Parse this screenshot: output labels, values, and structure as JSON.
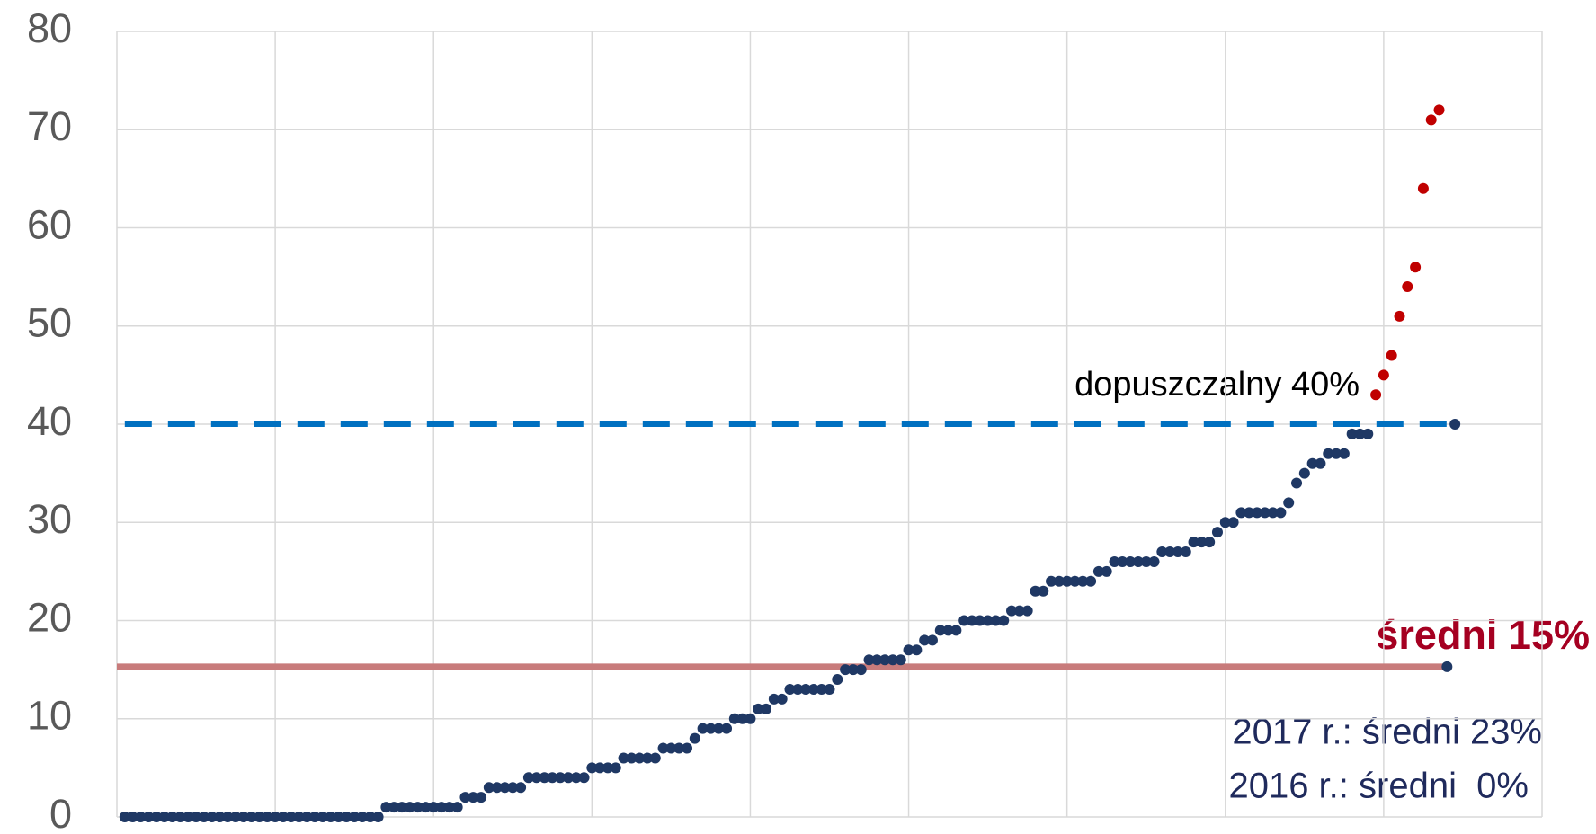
{
  "chart_data": {
    "type": "scatter",
    "xlim": [
      0,
      180
    ],
    "xticks": [
      0,
      20,
      40,
      60,
      80,
      100,
      120,
      140,
      160,
      180
    ],
    "ylim": [
      0,
      80
    ],
    "yticks": [
      0,
      10,
      20,
      30,
      40,
      50,
      60,
      70,
      80
    ],
    "grid": true,
    "series": [
      {
        "color": "#1f3864",
        "x": [
          1,
          2,
          3,
          4,
          5,
          6,
          7,
          8,
          9,
          10,
          11,
          12,
          13,
          14,
          15,
          16,
          17,
          18,
          19,
          20,
          21,
          22,
          23,
          24,
          25,
          26,
          27,
          28,
          29,
          30,
          31,
          32,
          33,
          34,
          35,
          36,
          37,
          38,
          39,
          40,
          41,
          42,
          43,
          44,
          45,
          46,
          47,
          48,
          49,
          50,
          51,
          52,
          53,
          54,
          55,
          56,
          57,
          58,
          59,
          60,
          61,
          62,
          63,
          64,
          65,
          66,
          67,
          68,
          69,
          70,
          71,
          72,
          73,
          74,
          75,
          76,
          77,
          78,
          79,
          80,
          81,
          82,
          83,
          84,
          85,
          86,
          87,
          88,
          89,
          90,
          91,
          92,
          93,
          94,
          95,
          96,
          97,
          98,
          99,
          100,
          101,
          102,
          103,
          104,
          105,
          106,
          107,
          108,
          109,
          110,
          111,
          112,
          113,
          114,
          115,
          116,
          117,
          118,
          119,
          120,
          121,
          122,
          123,
          124,
          125,
          126,
          127,
          128,
          129,
          130,
          131,
          132,
          133,
          134,
          135,
          136,
          137,
          138,
          139,
          140,
          141,
          142,
          143,
          144,
          145,
          146,
          147,
          148,
          149,
          150,
          151,
          152,
          153,
          154,
          155,
          156,
          157,
          158
        ],
        "values": [
          0,
          0,
          0,
          0,
          0,
          0,
          0,
          0,
          0,
          0,
          0,
          0,
          0,
          0,
          0,
          0,
          0,
          0,
          0,
          0,
          0,
          0,
          0,
          0,
          0,
          0,
          0,
          0,
          0,
          0,
          0,
          0,
          0,
          1,
          1,
          1,
          1,
          1,
          1,
          1,
          1,
          1,
          1,
          2,
          2,
          2,
          3,
          3,
          3,
          3,
          3,
          4,
          4,
          4,
          4,
          4,
          4,
          4,
          4,
          5,
          5,
          5,
          5,
          6,
          6,
          6,
          6,
          6,
          7,
          7,
          7,
          7,
          8,
          9,
          9,
          9,
          9,
          10,
          10,
          10,
          11,
          11,
          12,
          12,
          13,
          13,
          13,
          13,
          13,
          13,
          14,
          15,
          15,
          15,
          16,
          16,
          16,
          16,
          16,
          17,
          17,
          18,
          18,
          19,
          19,
          19,
          20,
          20,
          20,
          20,
          20,
          20,
          21,
          21,
          21,
          23,
          23,
          24,
          24,
          24,
          24,
          24,
          24,
          25,
          25,
          26,
          26,
          26,
          26,
          26,
          26,
          27,
          27,
          27,
          27,
          28,
          28,
          28,
          29,
          30,
          30,
          31,
          31,
          31,
          31,
          31,
          31,
          32,
          34,
          35,
          36,
          36,
          37,
          37,
          37,
          39,
          39,
          39
        ]
      },
      {
        "color": "#c00000",
        "x": [
          159,
          160,
          161,
          162,
          163,
          164,
          165,
          166,
          167
        ],
        "values": [
          43,
          45,
          47,
          51,
          54,
          56,
          64,
          71,
          72
        ]
      }
    ],
    "lines": [
      {
        "color": "#0070c0",
        "dashed": true,
        "marker_color": "#1f3864",
        "x": [
          1,
          169
        ],
        "values": [
          40,
          40
        ]
      },
      {
        "color": "#c87b7b",
        "dashed": false,
        "marker_color": "#1f3864",
        "x": [
          0,
          168
        ],
        "values": [
          15.3,
          15.3
        ]
      }
    ],
    "annotations": [
      "dopuszczalny 40%",
      "średni 15%",
      "2017 r.: średni 23%",
      "2016 r.: średni  0%"
    ]
  }
}
